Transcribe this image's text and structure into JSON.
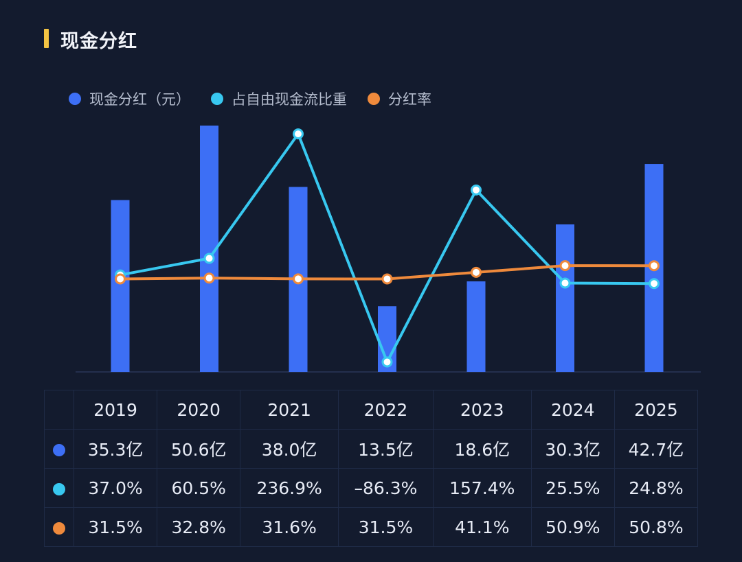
{
  "title": "现金分红",
  "colors": {
    "bar": "#3d6ff5",
    "share_line": "#38c8f0",
    "payout_line": "#ef8a3c",
    "title_accent": "#f4c443"
  },
  "legend": [
    {
      "label": "现金分红（元）",
      "color": "#3d6ff5"
    },
    {
      "label": "占自由现金流比重",
      "color": "#38c8f0"
    },
    {
      "label": "分红率",
      "color": "#ef8a3c"
    }
  ],
  "chart_data": {
    "type": "bar",
    "categories": [
      "2019",
      "2020",
      "2021",
      "2022",
      "2023",
      "2024",
      "2025"
    ],
    "series": [
      {
        "name": "现金分红（元）",
        "type": "bar",
        "values": [
          35.3,
          50.6,
          38.0,
          13.5,
          18.6,
          30.3,
          42.7
        ]
      },
      {
        "name": "占自由现金流比重",
        "type": "line",
        "values": [
          37.0,
          60.5,
          236.9,
          -86.3,
          157.4,
          25.5,
          24.8
        ]
      },
      {
        "name": "分红率",
        "type": "line",
        "values": [
          31.5,
          32.8,
          31.6,
          31.5,
          41.1,
          50.9,
          50.8
        ]
      }
    ],
    "grid": false,
    "legend_position": "top-left"
  },
  "table": {
    "header": [
      "2019",
      "2020",
      "2021",
      "2022",
      "2023",
      "2024",
      "2025"
    ],
    "rows": [
      {
        "color": "#3d6ff5",
        "cells": [
          "35.3亿",
          "50.6亿",
          "38.0亿",
          "13.5亿",
          "18.6亿",
          "30.3亿",
          "42.7亿"
        ]
      },
      {
        "color": "#38c8f0",
        "cells": [
          "37.0%",
          "60.5%",
          "236.9%",
          "–86.3%",
          "157.4%",
          "25.5%",
          "24.8%"
        ]
      },
      {
        "color": "#ef8a3c",
        "cells": [
          "31.5%",
          "32.8%",
          "31.6%",
          "31.5%",
          "41.1%",
          "50.9%",
          "50.8%"
        ]
      }
    ]
  }
}
